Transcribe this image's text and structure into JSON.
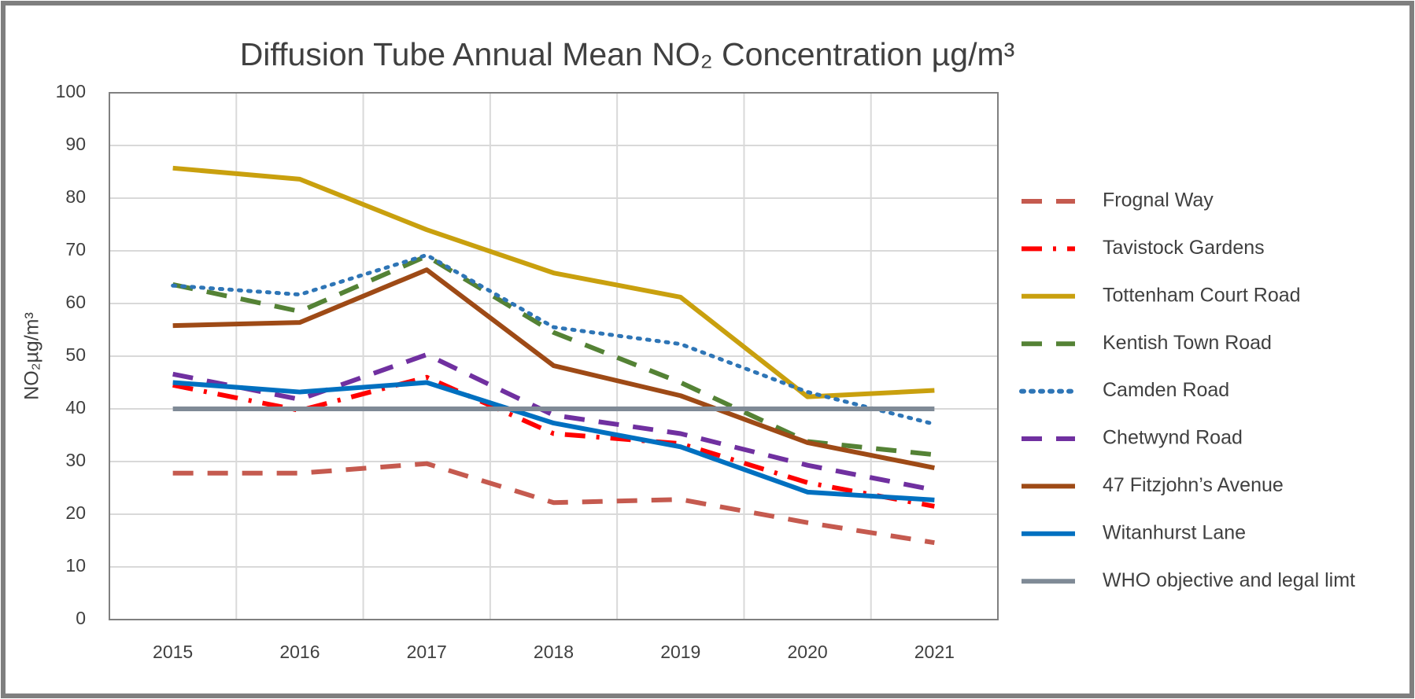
{
  "chart_data": {
    "type": "line",
    "title": "Diffusion Tube Annual Mean NO₂ Concentration µg/m³",
    "ylabel": "NO₂µg/m³",
    "categories": [
      "2015",
      "2016",
      "2017",
      "2018",
      "2019",
      "2020",
      "2021"
    ],
    "ylim": [
      0,
      100
    ],
    "yticks": [
      0,
      10,
      20,
      30,
      40,
      50,
      60,
      70,
      80,
      90,
      100
    ],
    "grid": true,
    "legend": "right",
    "series": [
      {
        "name": "Frognal Way",
        "color": "#c55a4f",
        "style": "dashed",
        "values": [
          27.8,
          27.8,
          29.6,
          22.2,
          22.8,
          18.4,
          14.6
        ]
      },
      {
        "name": "Tavistock Gardens",
        "color": "#ff0000",
        "style": "dashdot",
        "values": [
          44.5,
          39.7,
          46,
          35.3,
          33.4,
          26,
          21.5
        ]
      },
      {
        "name": "Tottenham Court Road",
        "color": "#c9a00e",
        "style": "solid",
        "values": [
          85.7,
          83.6,
          74,
          65.8,
          61.2,
          42.3,
          43.5
        ]
      },
      {
        "name": "Kentish Town Road",
        "color": "#548235",
        "style": "dashed",
        "values": [
          63.6,
          58.5,
          69,
          54.5,
          45,
          33.8,
          31.3
        ]
      },
      {
        "name": "Camden Road",
        "color": "#2e75b6",
        "style": "dotted",
        "values": [
          63.4,
          61.7,
          69.2,
          55.5,
          52.3,
          43.2,
          37.1
        ]
      },
      {
        "name": "Chetwynd Road",
        "color": "#7030a0",
        "style": "dashed",
        "values": [
          46.6,
          41.8,
          50.3,
          38.8,
          35.3,
          29.3,
          24.6
        ]
      },
      {
        "name": "47 Fitzjohn’s Avenue",
        "color": "#9e4a16",
        "style": "solid",
        "values": [
          55.8,
          56.4,
          66.4,
          48.2,
          42.5,
          33.6,
          28.8
        ]
      },
      {
        "name": "Witanhurst Lane",
        "color": "#0070c0",
        "style": "solid",
        "values": [
          45,
          43.2,
          45,
          37.3,
          32.8,
          24.2,
          22.7
        ]
      },
      {
        "name": "WHO objective and legal limt",
        "color": "#7f8a96",
        "style": "solid",
        "values": [
          40,
          40,
          40,
          40,
          40,
          40,
          40
        ]
      }
    ]
  }
}
